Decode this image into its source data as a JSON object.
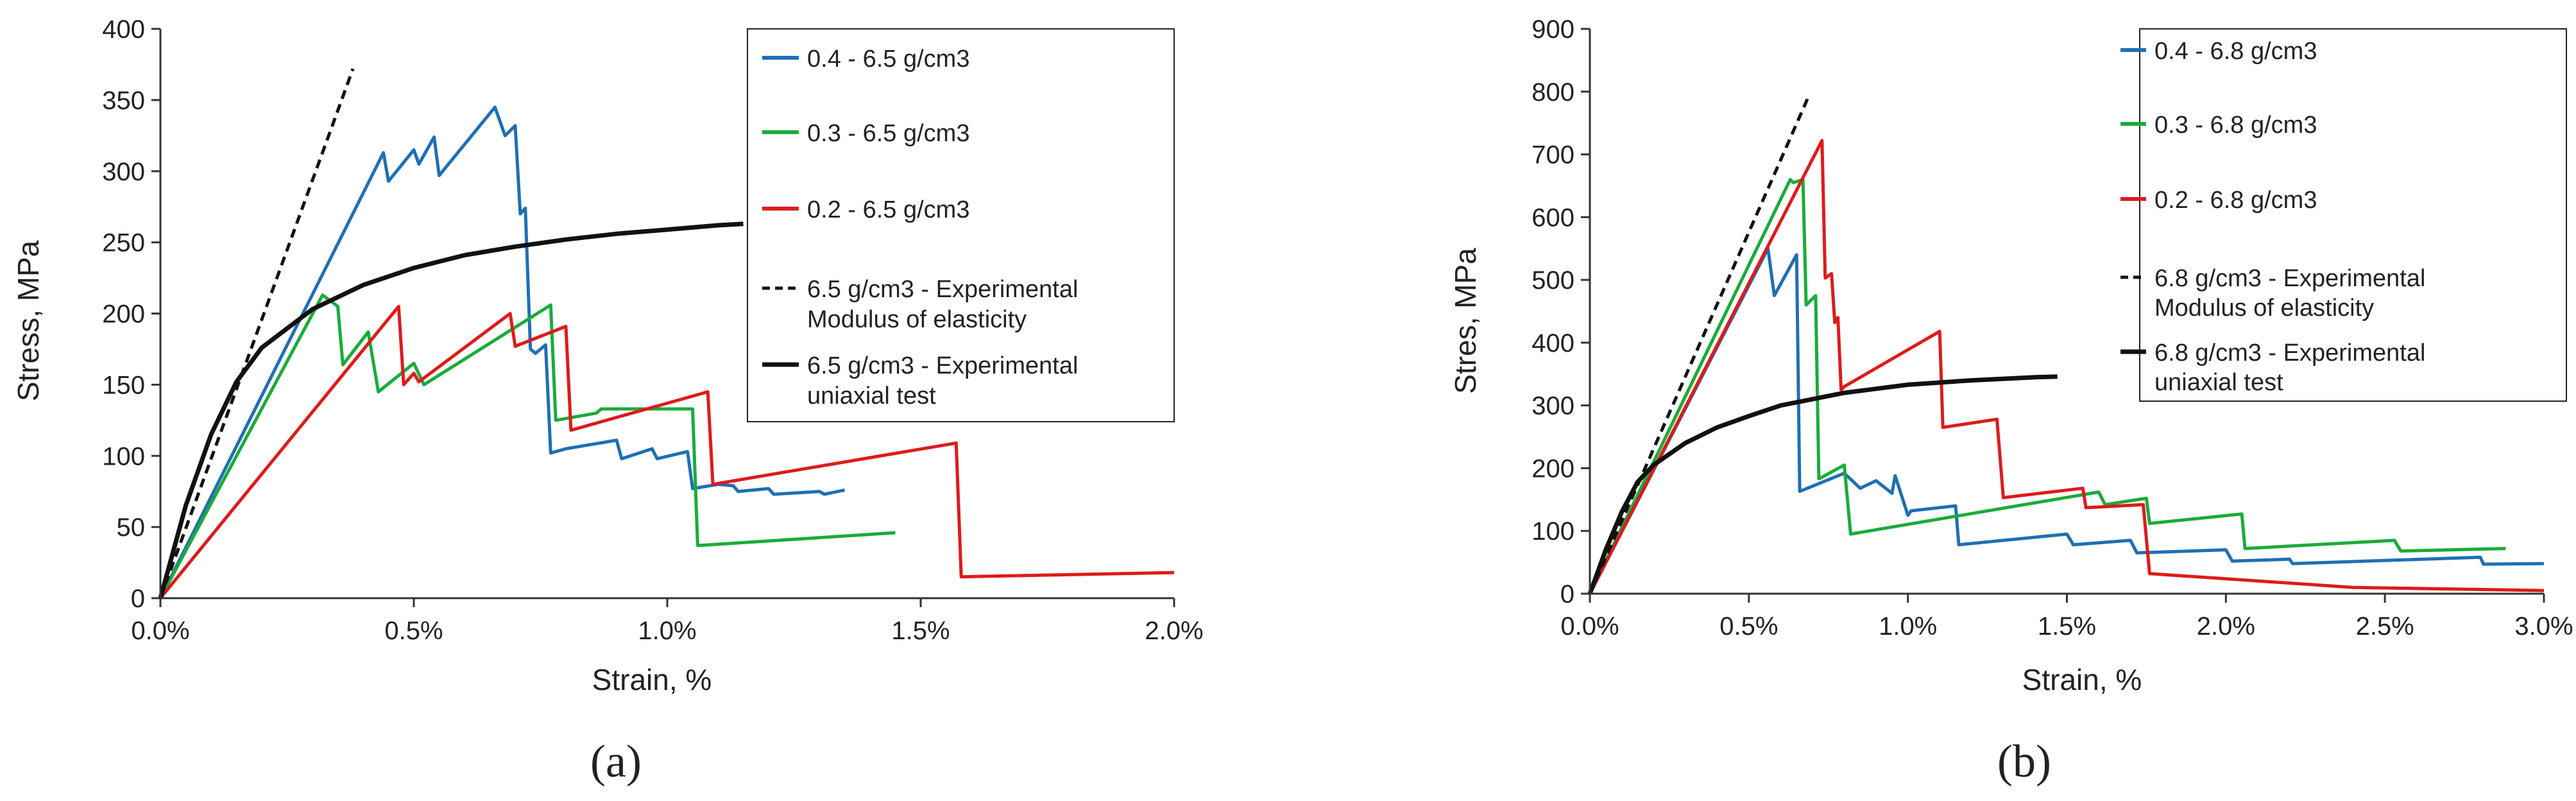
{
  "charts": [
    {
      "id": "a",
      "panel_label": "(a)",
      "xaxis_label": "Strain, %",
      "yaxis_label": "Stress, MPa",
      "x_tick_labels": [
        "0.0%",
        "0.5%",
        "1.0%",
        "1.5%",
        "2.0%"
      ],
      "y_tick_labels": [
        "0",
        "50",
        "100",
        "150",
        "200",
        "250",
        "300",
        "350",
        "400"
      ],
      "legend": [
        {
          "label": "0.4 - 6.5 g/cm3",
          "color": "#1f6fb4"
        },
        {
          "label": "0.3 - 6.5 g/cm3",
          "color": "#1aab3a"
        },
        {
          "label": "0.2 - 6.5 g/cm3",
          "color": "#dd1b1b"
        },
        {
          "label": "6.5 g/cm3 - Experimental",
          "label2": "Modulus of elasticity",
          "color": "#111111"
        },
        {
          "label": "6.5 g/cm3 - Experimental",
          "label2": "uniaxial test",
          "color": "#111111"
        }
      ]
    },
    {
      "id": "b",
      "panel_label": "(b)",
      "xaxis_label": "Strain, %",
      "yaxis_label": "Stres, MPa",
      "x_tick_labels": [
        "0.0%",
        "0.5%",
        "1.0%",
        "1.5%",
        "2.0%",
        "2.5%",
        "3.0%"
      ],
      "y_tick_labels": [
        "0",
        "100",
        "200",
        "300",
        "400",
        "500",
        "600",
        "700",
        "800",
        "900"
      ],
      "legend": [
        {
          "label": "0.4 - 6.8 g/cm3",
          "color": "#1f6fb4"
        },
        {
          "label": "0.3 - 6.8 g/cm3",
          "color": "#1aab3a"
        },
        {
          "label": "0.2 - 6.8 g/cm3",
          "color": "#dd1b1b"
        },
        {
          "label": "6.8 g/cm3 - Experimental",
          "label2": "Modulus of elasticity",
          "color": "#111111"
        },
        {
          "label": "6.8 g/cm3 - Experimental",
          "label2": "uniaxial test",
          "color": "#111111"
        }
      ]
    }
  ],
  "chart_data": [
    {
      "type": "line",
      "title": "(a)",
      "xlabel": "Strain, %",
      "ylabel": "Stress, MPa",
      "xlim": [
        0,
        2.0
      ],
      "ylim": [
        0,
        400
      ],
      "x_ticks": [
        0,
        0.5,
        1.0,
        1.5,
        2.0
      ],
      "y_ticks": [
        0,
        50,
        100,
        150,
        200,
        250,
        300,
        350,
        400
      ],
      "legend_position": "top-right",
      "series": [
        {
          "name": "0.4 - 6.5 g/cm3",
          "color": "#1f6fb4",
          "dash": "solid",
          "x": [
            0,
            0.44,
            0.45,
            0.5,
            0.51,
            0.54,
            0.55,
            0.66,
            0.68,
            0.7,
            0.71,
            0.72,
            0.73,
            0.74,
            0.76,
            0.77,
            0.8,
            0.9,
            0.91,
            0.97,
            0.98,
            1.04,
            1.05,
            1.1,
            1.13,
            1.14,
            1.2,
            1.21,
            1.3,
            1.31,
            1.35
          ],
          "y": [
            0,
            313,
            293,
            315,
            305,
            324,
            297,
            345,
            325,
            332,
            270,
            274,
            175,
            172,
            178,
            102,
            105,
            111,
            98,
            105,
            98,
            103,
            77,
            80,
            79,
            75,
            77,
            73,
            75,
            73,
            76
          ]
        },
        {
          "name": "0.3 - 6.5 g/cm3",
          "color": "#1aab3a",
          "dash": "solid",
          "x": [
            0,
            0.32,
            0.35,
            0.36,
            0.41,
            0.43,
            0.5,
            0.52,
            0.77,
            0.78,
            0.86,
            0.87,
            1.05,
            1.06,
            1.45
          ],
          "y": [
            0,
            213,
            205,
            164,
            187,
            145,
            165,
            150,
            206,
            125,
            130,
            133,
            133,
            37,
            46
          ]
        },
        {
          "name": "0.2 - 6.5 g/cm3",
          "color": "#dd1b1b",
          "dash": "solid",
          "x": [
            0,
            0.47,
            0.48,
            0.5,
            0.51,
            0.69,
            0.7,
            0.8,
            0.81,
            1.08,
            1.09,
            1.57,
            1.58,
            2.0
          ],
          "y": [
            0,
            205,
            150,
            158,
            152,
            200,
            177,
            191,
            118,
            145,
            80,
            109,
            15,
            18
          ]
        },
        {
          "name": "6.5 g/cm3 - Experimental Modulus of elasticity",
          "color": "#111111",
          "dash": "dashed",
          "x": [
            0,
            0.38
          ],
          "y": [
            0,
            372
          ]
        },
        {
          "name": "6.5 g/cm3 - Experimental uniaxial test",
          "color": "#111111",
          "dash": "solid",
          "x": [
            0,
            0.05,
            0.1,
            0.15,
            0.2,
            0.3,
            0.4,
            0.5,
            0.6,
            0.7,
            0.8,
            0.9,
            1.0,
            1.1,
            1.15
          ],
          "y": [
            0,
            65,
            115,
            152,
            176,
            203,
            220,
            232,
            241,
            247,
            252,
            256,
            259,
            262,
            263
          ]
        }
      ]
    },
    {
      "type": "line",
      "title": "(b)",
      "xlabel": "Strain, %",
      "ylabel": "Stres, MPa",
      "xlim": [
        0,
        3.0
      ],
      "ylim": [
        0,
        900
      ],
      "x_ticks": [
        0,
        0.5,
        1.0,
        1.5,
        2.0,
        2.5,
        3.0
      ],
      "y_ticks": [
        0,
        100,
        200,
        300,
        400,
        500,
        600,
        700,
        800,
        900
      ],
      "legend_position": "top-right",
      "series": [
        {
          "name": "0.4 - 6.8 g/cm3",
          "color": "#1f6fb4",
          "dash": "solid",
          "x": [
            0,
            0.56,
            0.58,
            0.65,
            0.66,
            0.8,
            0.85,
            0.9,
            0.95,
            0.96,
            1.0,
            1.01,
            1.15,
            1.16,
            1.5,
            1.52,
            1.7,
            1.72,
            2.0,
            2.02,
            2.2,
            2.21,
            2.8,
            2.81,
            3.0
          ],
          "y": [
            0,
            550,
            475,
            540,
            163,
            192,
            168,
            180,
            160,
            188,
            125,
            132,
            140,
            78,
            95,
            78,
            85,
            65,
            70,
            52,
            55,
            48,
            58,
            47,
            48
          ]
        },
        {
          "name": "0.3 - 6.8 g/cm3",
          "color": "#1aab3a",
          "dash": "solid",
          "x": [
            0,
            0.63,
            0.64,
            0.67,
            0.68,
            0.71,
            0.72,
            0.8,
            0.82,
            1.6,
            1.62,
            1.75,
            1.76,
            2.05,
            2.06,
            2.53,
            2.55,
            2.88
          ],
          "y": [
            0,
            660,
            655,
            660,
            460,
            475,
            183,
            205,
            95,
            162,
            142,
            152,
            112,
            127,
            72,
            85,
            68,
            72
          ]
        },
        {
          "name": "0.2 - 6.8 g/cm3",
          "color": "#dd1b1b",
          "dash": "solid",
          "x": [
            0,
            0.73,
            0.74,
            0.76,
            0.77,
            0.78,
            0.79,
            0.8,
            1.1,
            1.11,
            1.28,
            1.3,
            1.55,
            1.56,
            1.74,
            1.76,
            2.4,
            3.0
          ],
          "y": [
            0,
            722,
            503,
            510,
            432,
            440,
            325,
            330,
            418,
            265,
            278,
            153,
            168,
            137,
            142,
            32,
            10,
            5
          ]
        },
        {
          "name": "6.8 g/cm3 - Experimental Modulus of elasticity",
          "color": "#111111",
          "dash": "dashed",
          "x": [
            0,
            0.69
          ],
          "y": [
            0,
            795
          ]
        },
        {
          "name": "6.8 g/cm3 - Experimental uniaxial test",
          "color": "#111111",
          "dash": "solid",
          "x": [
            0,
            0.05,
            0.1,
            0.15,
            0.2,
            0.3,
            0.4,
            0.5,
            0.6,
            0.8,
            1.0,
            1.2,
            1.4,
            1.47
          ],
          "y": [
            0,
            70,
            130,
            178,
            205,
            240,
            265,
            283,
            300,
            320,
            333,
            340,
            345,
            346
          ]
        }
      ]
    }
  ]
}
